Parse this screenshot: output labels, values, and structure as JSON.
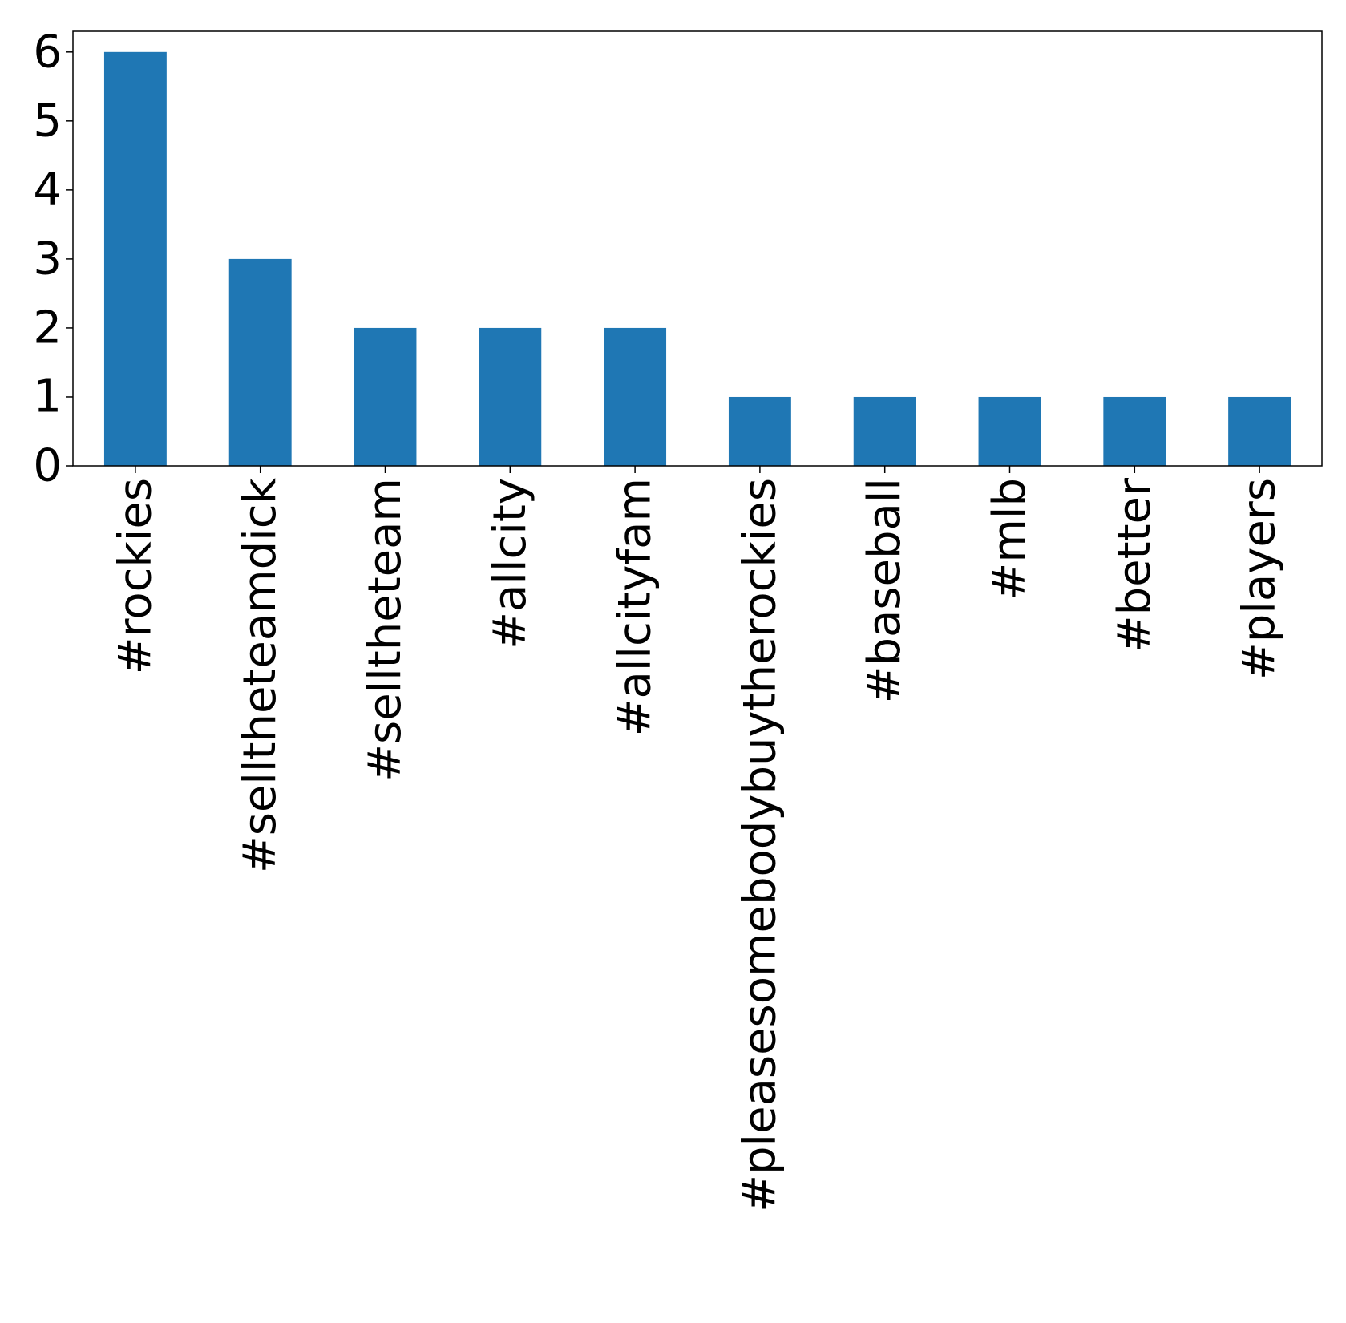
{
  "chart_data": {
    "type": "bar",
    "title": "",
    "xlabel": "",
    "ylabel": "",
    "categories": [
      "#rockies",
      "#selltheteamdick",
      "#selltheteam",
      "#allcity",
      "#allcityfam",
      "#pleasesomebodybuytherockies",
      "#baseball",
      "#mlb",
      "#better",
      "#players"
    ],
    "values": [
      6,
      3,
      2,
      2,
      2,
      1,
      1,
      1,
      1,
      1
    ],
    "ylim": [
      0,
      6.3
    ],
    "yticks": [
      0,
      1,
      2,
      3,
      4,
      5,
      6
    ],
    "ytick_labels": [
      "0",
      "1",
      "2",
      "3",
      "4",
      "5",
      "6"
    ],
    "grid": false,
    "legend": "none",
    "colors": {
      "bar": "#1f77b4",
      "axis": "#000000"
    }
  }
}
